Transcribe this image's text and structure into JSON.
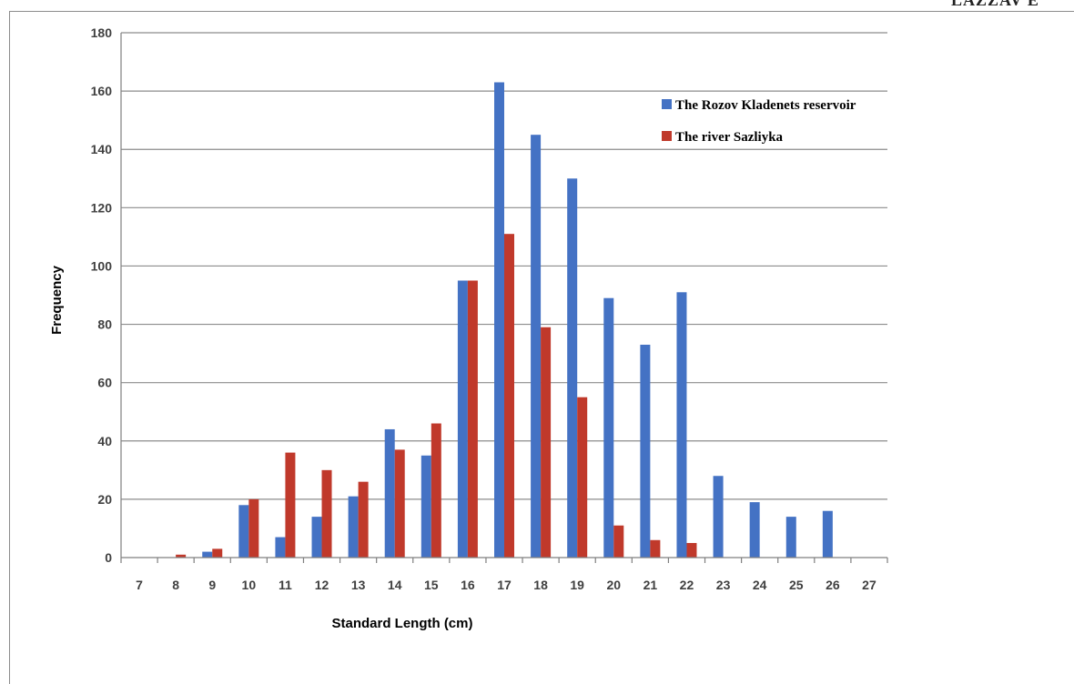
{
  "corner_text": "LAZZAV E",
  "colors": {
    "series1": "#4472C4",
    "series2": "#C0392B",
    "grid": "#8c8c8c",
    "axis": "#7f7f7f"
  },
  "chart_data": {
    "type": "bar",
    "title": "",
    "xlabel": "Standard Length (cm)",
    "ylabel": "Frequency",
    "ylim": [
      0,
      180
    ],
    "yticks": [
      0,
      20,
      40,
      60,
      80,
      100,
      120,
      140,
      160,
      180
    ],
    "categories": [
      "7",
      "8",
      "9",
      "10",
      "11",
      "12",
      "13",
      "14",
      "15",
      "16",
      "17",
      "18",
      "19",
      "20",
      "21",
      "22",
      "23",
      "24",
      "25",
      "26",
      "27"
    ],
    "grid": true,
    "legend_position": "top-right",
    "series": [
      {
        "name": "The Rozov Kladenets reservoir",
        "values": [
          0,
          0,
          2,
          18,
          7,
          14,
          21,
          44,
          35,
          95,
          163,
          145,
          130,
          89,
          73,
          91,
          28,
          19,
          14,
          16,
          0
        ]
      },
      {
        "name": "The river Sazliyka",
        "values": [
          0,
          1,
          3,
          20,
          36,
          30,
          26,
          37,
          46,
          95,
          111,
          79,
          55,
          11,
          6,
          5,
          0,
          0,
          0,
          0,
          0
        ]
      }
    ]
  }
}
